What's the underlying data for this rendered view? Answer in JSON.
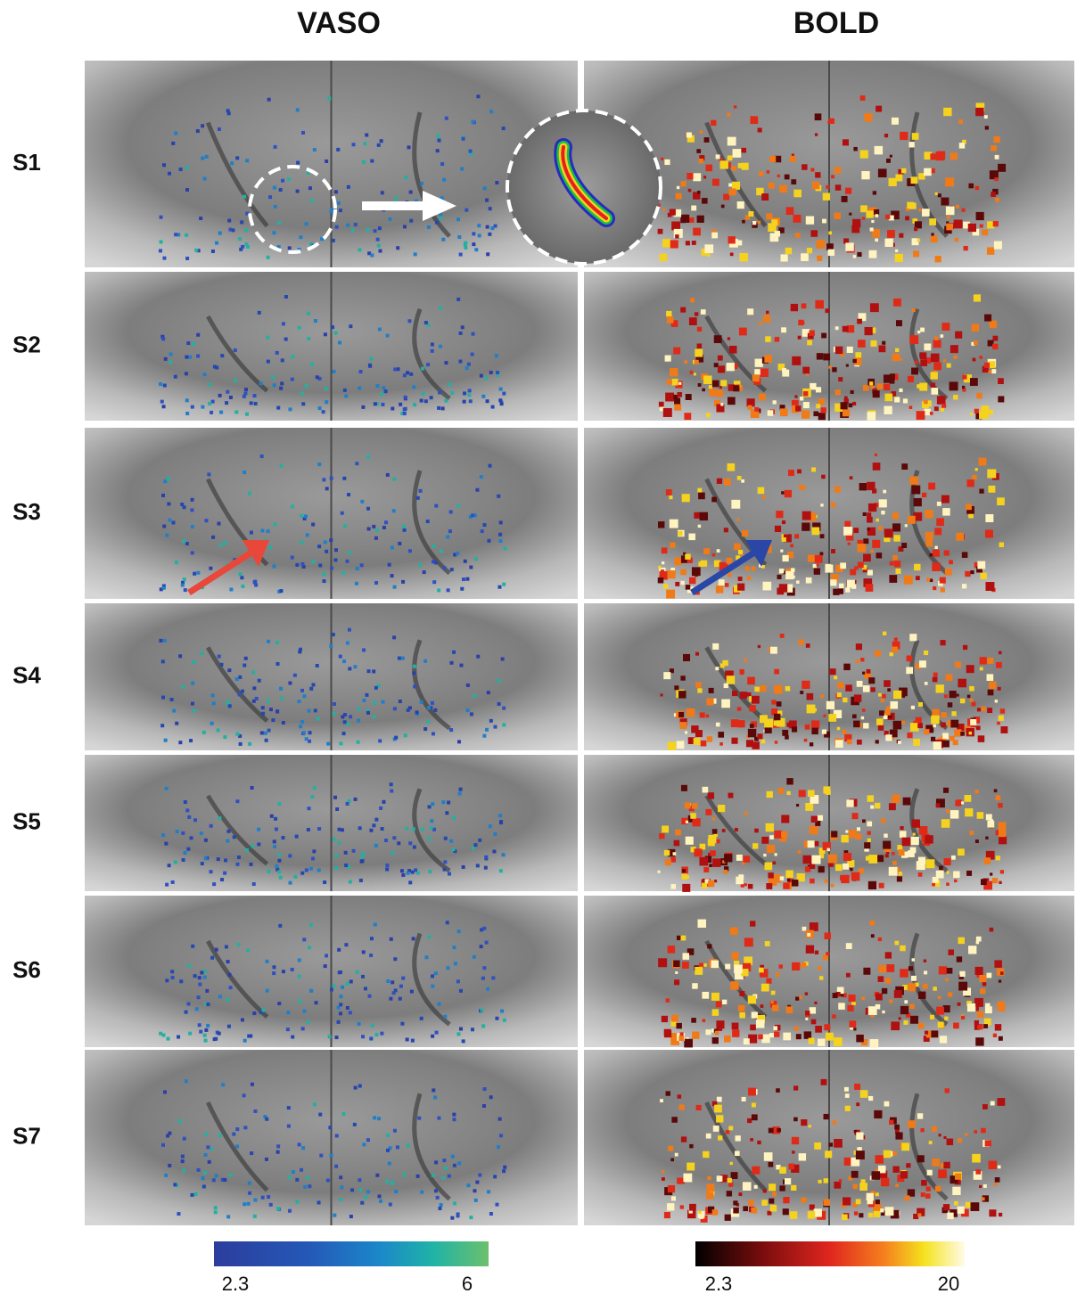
{
  "columns": [
    "VASO",
    "BOLD"
  ],
  "rows": [
    "S1",
    "S2",
    "S3",
    "S4",
    "S5",
    "S6",
    "S7"
  ],
  "colorbars": [
    {
      "min": 2.3,
      "max": 6
    },
    {
      "min": 2.3,
      "max": 20
    }
  ]
}
